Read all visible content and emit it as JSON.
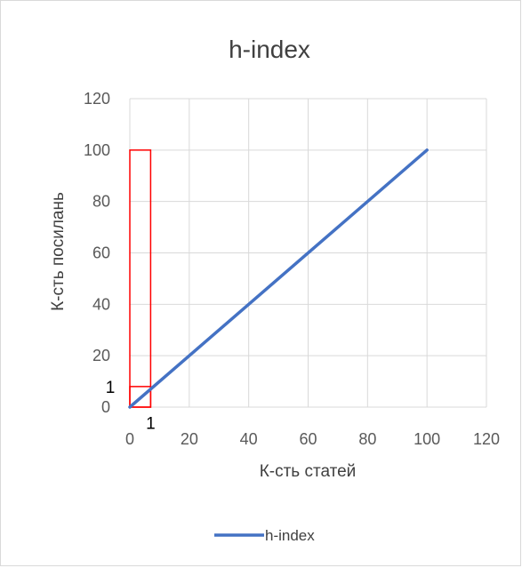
{
  "chart_data": {
    "type": "line",
    "title": "h-index",
    "xlabel": "К-сть статей",
    "ylabel": "К-сть посилань",
    "xlim": [
      0,
      120
    ],
    "ylim": [
      0,
      120
    ],
    "x_ticks": [
      "0",
      "20",
      "40",
      "60",
      "80",
      "100",
      "120"
    ],
    "y_ticks": [
      "0",
      "20",
      "40",
      "60",
      "80",
      "100",
      "120"
    ],
    "grid": true,
    "legend_position": "bottom",
    "series": [
      {
        "name": "h-index",
        "x": [
          0,
          100
        ],
        "y": [
          0,
          100
        ],
        "color": "#4472c4"
      }
    ],
    "highlight_boxes": [
      {
        "x0": 0,
        "x1": 7,
        "y0": 0,
        "y1": 100,
        "color": "#ff0000"
      },
      {
        "x0": 0,
        "x1": 7,
        "y0": 0,
        "y1": 8,
        "color": "#ff0000"
      }
    ],
    "annotations": [
      {
        "text": "1",
        "x": -5,
        "y": 8,
        "anchor": "end"
      },
      {
        "text": "1",
        "x": 7,
        "y": -6,
        "anchor": "middle"
      }
    ]
  }
}
